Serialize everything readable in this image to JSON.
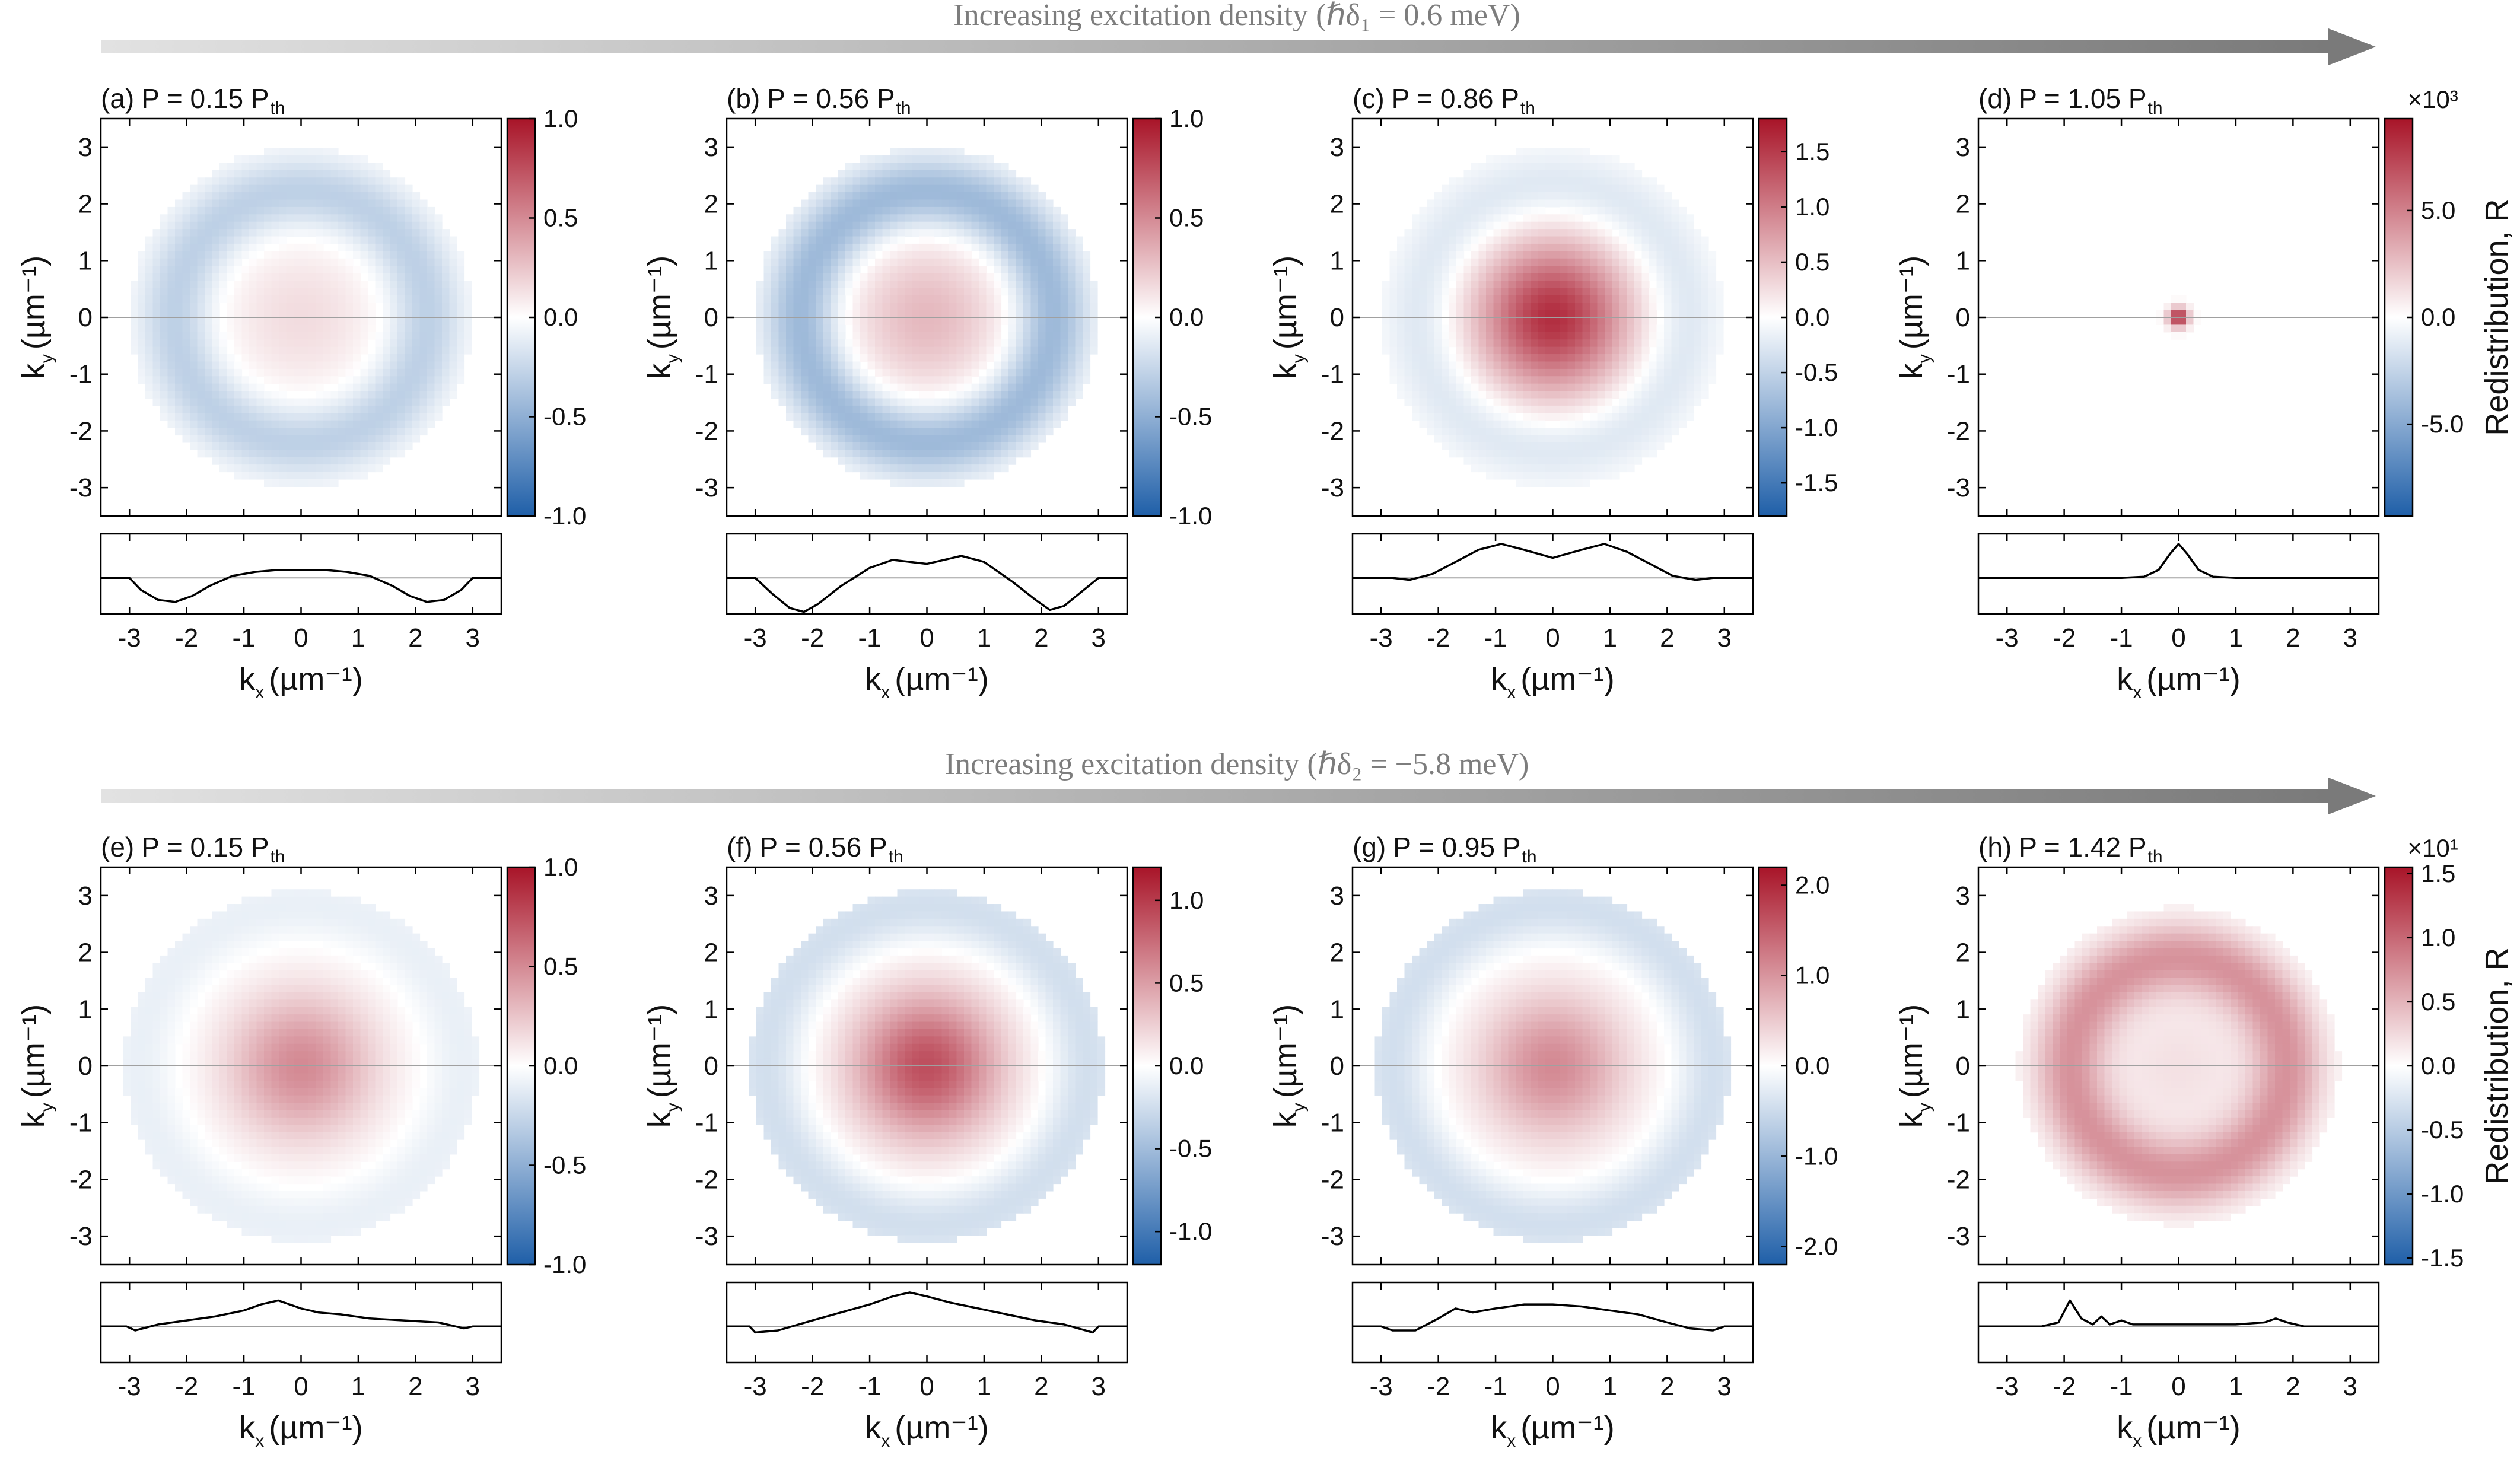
{
  "banners": [
    {
      "text": "Increasing excitation density (ℏδ₁ = 0.6 meV)"
    },
    {
      "text": "Increasing excitation density (ℏδ₂ = −5.8 meV)"
    }
  ],
  "colors": {
    "banner_start": "#e2e2e2",
    "banner_end": "#7a7a7a",
    "negative": "#1f5fa8",
    "zero": "#ffffff",
    "positive": "#a81428",
    "profile_line": "#000000",
    "zero_line": "#a0a0a0"
  },
  "chart_data": [
    {
      "type": "heatmap",
      "label": "(a)",
      "title_main": "P = 0.15 P",
      "title_sub": "th",
      "xlabel": "k",
      "xsub": "x",
      "ylabel": "k",
      "ysub": "y",
      "unit": "(µm⁻¹)",
      "xticks": [
        -3,
        -2,
        -1,
        0,
        1,
        2,
        3
      ],
      "yticks": [
        3,
        2,
        1,
        0,
        -1,
        -2,
        -3
      ],
      "xlim": [
        -3.5,
        3.5
      ],
      "ylim": [
        -3.5,
        3.5
      ],
      "colorbar": {
        "ticks": [
          "1.0",
          "0.5",
          "0.0",
          "-0.5",
          "-1.0"
        ],
        "range": [
          -1.0,
          1.0
        ],
        "label": "",
        "multiplier": ""
      },
      "pattern": {
        "disk_radius": 3.0,
        "center_value": 0.15,
        "ring_value": -0.3,
        "ring_radius": 2.2
      }
    },
    {
      "type": "heatmap",
      "label": "(b)",
      "title_main": "P = 0.56 P",
      "title_sub": "th",
      "xlabel": "k",
      "xsub": "x",
      "ylabel": "k",
      "ysub": "y",
      "unit": "(µm⁻¹)",
      "xticks": [
        -3,
        -2,
        -1,
        0,
        1,
        2,
        3
      ],
      "yticks": [
        3,
        2,
        1,
        0,
        -1,
        -2,
        -3
      ],
      "xlim": [
        -3.5,
        3.5
      ],
      "ylim": [
        -3.5,
        3.5
      ],
      "colorbar": {
        "ticks": [
          "1.0",
          "0.5",
          "0.0",
          "-0.5",
          "-1.0"
        ],
        "range": [
          -1.0,
          1.0
        ],
        "label": "",
        "multiplier": ""
      },
      "pattern": {
        "disk_radius": 3.0,
        "center_value": 0.3,
        "ring_value": -0.45,
        "ring_radius": 2.2
      }
    },
    {
      "type": "heatmap",
      "label": "(c)",
      "title_main": "P = 0.86 P",
      "title_sub": "th",
      "xlabel": "k",
      "xsub": "x",
      "ylabel": "k",
      "ysub": "y",
      "unit": "(µm⁻¹)",
      "xticks": [
        -3,
        -2,
        -1,
        0,
        1,
        2,
        3
      ],
      "yticks": [
        3,
        2,
        1,
        0,
        -1,
        -2,
        -3
      ],
      "xlim": [
        -3.5,
        3.5
      ],
      "ylim": [
        -3.5,
        3.5
      ],
      "colorbar": {
        "ticks": [
          "1.5",
          "1.0",
          "0.5",
          "0.0",
          "-0.5",
          "-1.0",
          "-1.5"
        ],
        "range": [
          -1.8,
          1.8
        ],
        "label": "",
        "multiplier": ""
      },
      "pattern": {
        "disk_radius": 3.0,
        "center_value": 1.6,
        "ring_value": -0.3,
        "ring_radius": 2.3
      }
    },
    {
      "type": "heatmap",
      "label": "(d)",
      "title_main": "P = 1.05 P",
      "title_sub": "th",
      "xlabel": "k",
      "xsub": "x",
      "ylabel": "k",
      "ysub": "y",
      "unit": "(µm⁻¹)",
      "xticks": [
        -3,
        -2,
        -1,
        0,
        1,
        2,
        3
      ],
      "yticks": [
        3,
        2,
        1,
        0,
        -1,
        -2,
        -3
      ],
      "xlim": [
        -3.5,
        3.5
      ],
      "ylim": [
        -3.5,
        3.5
      ],
      "colorbar": {
        "ticks": [
          "5.0",
          "0.0",
          "-5.0"
        ],
        "range": [
          -9.3,
          9.3
        ],
        "label": "Redistribution, R",
        "multiplier": "×10³"
      },
      "pattern": {
        "disk_radius": 0.0,
        "center_value": 9.0,
        "ring_value": 0.0,
        "ring_radius": 0.0
      }
    },
    {
      "type": "heatmap",
      "label": "(e)",
      "title_main": "P = 0.15 P",
      "title_sub": "th",
      "xlabel": "k",
      "xsub": "x",
      "ylabel": "k",
      "ysub": "y",
      "unit": "(µm⁻¹)",
      "xticks": [
        -3,
        -2,
        -1,
        0,
        1,
        2,
        3
      ],
      "yticks": [
        3,
        2,
        1,
        0,
        -1,
        -2,
        -3
      ],
      "xlim": [
        -3.5,
        3.5
      ],
      "ylim": [
        -3.5,
        3.5
      ],
      "colorbar": {
        "ticks": [
          "1.0",
          "0.5",
          "0.0",
          "-0.5",
          "-1.0"
        ],
        "range": [
          -1.0,
          1.0
        ],
        "label": "",
        "multiplier": ""
      },
      "pattern": {
        "disk_radius": 3.1,
        "center_value": 0.5,
        "ring_value": -0.1,
        "ring_radius": 2.8
      }
    },
    {
      "type": "heatmap",
      "label": "(f)",
      "title_main": "P = 0.56 P",
      "title_sub": "th",
      "xlabel": "k",
      "xsub": "x",
      "ylabel": "k",
      "ysub": "y",
      "unit": "(µm⁻¹)",
      "xticks": [
        -3,
        -2,
        -1,
        0,
        1,
        2,
        3
      ],
      "yticks": [
        3,
        2,
        1,
        0,
        -1,
        -2,
        -3
      ],
      "xlim": [
        -3.5,
        3.5
      ],
      "ylim": [
        -3.5,
        3.5
      ],
      "colorbar": {
        "ticks": [
          "1.0",
          "0.5",
          "0.0",
          "-0.5",
          "-1.0"
        ],
        "range": [
          -1.2,
          1.2
        ],
        "label": "",
        "multiplier": ""
      },
      "pattern": {
        "disk_radius": 3.1,
        "center_value": 0.9,
        "ring_value": -0.25,
        "ring_radius": 2.8
      }
    },
    {
      "type": "heatmap",
      "label": "(g)",
      "title_main": "P = 0.95 P",
      "title_sub": "th",
      "xlabel": "k",
      "xsub": "x",
      "ylabel": "k",
      "ysub": "y",
      "unit": "(µm⁻¹)",
      "xticks": [
        -3,
        -2,
        -1,
        0,
        1,
        2,
        3
      ],
      "yticks": [
        3,
        2,
        1,
        0,
        -1,
        -2,
        -3
      ],
      "xlim": [
        -3.5,
        3.5
      ],
      "ylim": [
        -3.5,
        3.5
      ],
      "colorbar": {
        "ticks": [
          "2.0",
          "1.0",
          "0.0",
          "-1.0",
          "-2.0"
        ],
        "range": [
          -2.2,
          2.2
        ],
        "label": "",
        "multiplier": ""
      },
      "pattern": {
        "disk_radius": 3.1,
        "center_value": 1.1,
        "ring_value": -0.45,
        "ring_radius": 2.8
      }
    },
    {
      "type": "heatmap",
      "label": "(h)",
      "title_main": "P = 1.42 P",
      "title_sub": "th",
      "xlabel": "k",
      "xsub": "x",
      "ylabel": "k",
      "ysub": "y",
      "unit": "(µm⁻¹)",
      "xticks": [
        -3,
        -2,
        -1,
        0,
        1,
        2,
        3
      ],
      "yticks": [
        3,
        2,
        1,
        0,
        -1,
        -2,
        -3
      ],
      "xlim": [
        -3.5,
        3.5
      ],
      "ylim": [
        -3.5,
        3.5
      ],
      "colorbar": {
        "ticks": [
          "1.5",
          "1.0",
          "0.5",
          "0.0",
          "-0.5",
          "-1.0",
          "-1.5"
        ],
        "range": [
          -1.55,
          1.55
        ],
        "label": "Redistribution, R",
        "multiplier": "×10¹"
      },
      "pattern": {
        "disk_radius": 2.8,
        "center_value": 0.2,
        "ring_value": 0.7,
        "ring_radius": 1.9
      }
    }
  ],
  "profiles": [
    {
      "x": [
        -3.5,
        -3.0,
        -2.8,
        -2.5,
        -2.2,
        -1.9,
        -1.6,
        -1.2,
        -0.8,
        -0.4,
        0.0,
        0.4,
        0.8,
        1.2,
        1.6,
        1.9,
        2.2,
        2.5,
        2.8,
        3.0,
        3.5
      ],
      "y": [
        0.0,
        0.0,
        -0.3,
        -0.55,
        -0.6,
        -0.45,
        -0.2,
        0.05,
        0.15,
        0.2,
        0.2,
        0.2,
        0.15,
        0.05,
        -0.2,
        -0.45,
        -0.6,
        -0.55,
        -0.3,
        0.0,
        0.0
      ]
    },
    {
      "x": [
        -3.5,
        -3.0,
        -2.7,
        -2.4,
        -2.15,
        -1.9,
        -1.5,
        -1.0,
        -0.6,
        -0.3,
        0.0,
        0.3,
        0.6,
        1.0,
        1.5,
        1.9,
        2.15,
        2.4,
        2.7,
        3.0,
        3.5
      ],
      "y": [
        0.0,
        0.0,
        -0.4,
        -0.75,
        -0.85,
        -0.65,
        -0.2,
        0.25,
        0.45,
        0.4,
        0.35,
        0.45,
        0.55,
        0.4,
        -0.1,
        -0.55,
        -0.8,
        -0.7,
        -0.35,
        0.0,
        0.0
      ]
    },
    {
      "x": [
        -3.5,
        -2.8,
        -2.5,
        -2.1,
        -1.7,
        -1.3,
        -0.9,
        -0.5,
        0.0,
        0.5,
        0.9,
        1.3,
        1.7,
        2.1,
        2.5,
        2.8,
        3.5
      ],
      "y": [
        0.0,
        0.0,
        -0.05,
        0.1,
        0.4,
        0.7,
        0.85,
        0.7,
        0.5,
        0.7,
        0.85,
        0.65,
        0.35,
        0.05,
        -0.05,
        0.0,
        0.0
      ]
    },
    {
      "x": [
        -3.5,
        -1.0,
        -0.6,
        -0.35,
        -0.15,
        0.0,
        0.15,
        0.35,
        0.6,
        1.0,
        3.5
      ],
      "y": [
        0.0,
        0.0,
        0.03,
        0.2,
        0.6,
        0.85,
        0.6,
        0.2,
        0.03,
        0.0,
        0.0
      ]
    },
    {
      "x": [
        -3.5,
        -3.05,
        -2.9,
        -2.5,
        -2.0,
        -1.5,
        -1.0,
        -0.7,
        -0.4,
        -0.2,
        0.0,
        0.3,
        0.7,
        1.2,
        1.8,
        2.4,
        2.85,
        3.0,
        3.5
      ],
      "y": [
        0.0,
        0.0,
        -0.1,
        0.05,
        0.15,
        0.25,
        0.4,
        0.55,
        0.65,
        0.55,
        0.45,
        0.35,
        0.3,
        0.2,
        0.15,
        0.1,
        -0.05,
        0.0,
        0.0
      ]
    },
    {
      "x": [
        -3.5,
        -3.1,
        -3.0,
        -2.6,
        -2.0,
        -1.5,
        -1.0,
        -0.6,
        -0.3,
        0.0,
        0.4,
        0.9,
        1.4,
        1.9,
        2.4,
        2.9,
        3.0,
        3.5
      ],
      "y": [
        0.0,
        0.0,
        -0.15,
        -0.1,
        0.15,
        0.35,
        0.55,
        0.75,
        0.85,
        0.75,
        0.6,
        0.45,
        0.3,
        0.15,
        0.05,
        -0.15,
        0.0,
        0.0
      ]
    },
    {
      "x": [
        -3.5,
        -3.0,
        -2.8,
        -2.4,
        -2.0,
        -1.7,
        -1.4,
        -1.0,
        -0.5,
        0.0,
        0.5,
        1.0,
        1.5,
        2.0,
        2.4,
        2.8,
        3.0,
        3.5
      ],
      "y": [
        0.0,
        0.0,
        -0.1,
        -0.1,
        0.2,
        0.45,
        0.35,
        0.45,
        0.55,
        0.55,
        0.5,
        0.4,
        0.3,
        0.1,
        -0.05,
        -0.1,
        0.0,
        0.0
      ]
    },
    {
      "x": [
        -3.5,
        -2.4,
        -2.1,
        -1.9,
        -1.7,
        -1.5,
        -1.35,
        -1.2,
        -1.0,
        -0.8,
        -0.5,
        0.0,
        0.5,
        1.0,
        1.5,
        1.7,
        1.9,
        2.2,
        3.5
      ],
      "y": [
        0.0,
        0.0,
        0.1,
        0.65,
        0.2,
        0.05,
        0.25,
        0.05,
        0.15,
        0.05,
        0.05,
        0.05,
        0.05,
        0.05,
        0.1,
        0.2,
        0.1,
        0.0,
        0.0
      ]
    }
  ]
}
